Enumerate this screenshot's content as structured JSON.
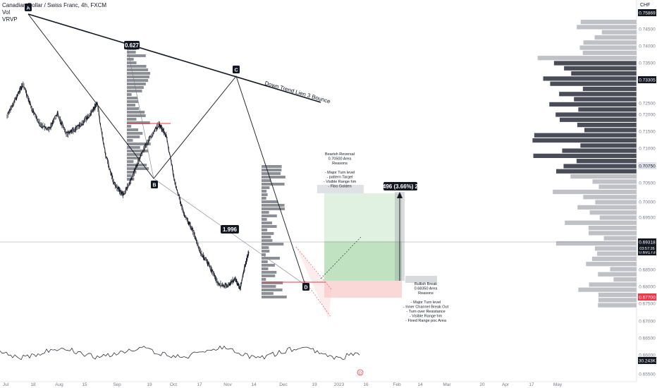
{
  "legend": {
    "title": "Canadian Dollar / Swiss Franc, 4h, FXCM",
    "line2": "Vol",
    "line3": "VRVP"
  },
  "axis_unit": "CHF",
  "colors": {
    "bull_zone": "#c8e6c9",
    "bear_zone": "#f8c8c8",
    "label_bg": "#131722",
    "price_red": "#f23645",
    "candle": "#131722",
    "volume_profile": "#b2b5be"
  },
  "chart_data": {
    "type": "line",
    "title": "Canadian Dollar / Swiss Franc, 4h, FXCM",
    "xlabel": "",
    "ylabel": "",
    "ylim": [
      0.65,
      0.76
    ],
    "y_ticks": [
      "0.75869",
      "0.74500",
      "0.74000",
      "0.73500",
      "0.73305",
      "0.72500",
      "0.72000",
      "0.71500",
      "0.71000",
      "0.70750",
      "0.70500",
      "0.70000",
      "0.69500",
      "0.69318",
      "0.69173",
      "0.68500",
      "0.68000",
      "0.67700",
      "0.67500",
      "0.67000",
      "0.66500",
      "0.66000",
      "30.243K",
      "0.65500"
    ],
    "x_ticks": [
      "Jul",
      "18",
      "Aug",
      "15",
      "Sep",
      "19",
      "Oct",
      "17",
      "Nov",
      "14",
      "Dec",
      "19",
      "2023",
      "16",
      "Feb",
      "14",
      "Mar",
      "20",
      "Apr",
      "17",
      "May"
    ],
    "price_series": [
      {
        "x": "Jul 1",
        "y": 0.745
      },
      {
        "x": "Jul 8",
        "y": 0.752
      },
      {
        "x": "Jul 14",
        "y": 0.7575
      },
      {
        "x": "Jul 21",
        "y": 0.748
      },
      {
        "x": "Jul 28",
        "y": 0.742
      },
      {
        "x": "Aug 4",
        "y": 0.74
      },
      {
        "x": "Aug 11",
        "y": 0.746
      },
      {
        "x": "Aug 18",
        "y": 0.738
      },
      {
        "x": "Aug 25",
        "y": 0.74
      },
      {
        "x": "Sep 1",
        "y": 0.743
      },
      {
        "x": "Sep 8",
        "y": 0.747
      },
      {
        "x": "Sep 12",
        "y": 0.75
      },
      {
        "x": "Sep 19",
        "y": 0.73
      },
      {
        "x": "Sep 26",
        "y": 0.719
      },
      {
        "x": "Oct 3",
        "y": 0.715
      },
      {
        "x": "Oct 10",
        "y": 0.721
      },
      {
        "x": "Oct 17",
        "y": 0.73
      },
      {
        "x": "Oct 24",
        "y": 0.736
      },
      {
        "x": "Nov 1",
        "y": 0.742
      },
      {
        "x": "Nov 7",
        "y": 0.738
      },
      {
        "x": "Nov 14",
        "y": 0.72
      },
      {
        "x": "Nov 21",
        "y": 0.708
      },
      {
        "x": "Nov 28",
        "y": 0.702
      },
      {
        "x": "Dec 5",
        "y": 0.693
      },
      {
        "x": "Dec 12",
        "y": 0.688
      },
      {
        "x": "Dec 19",
        "y": 0.681
      },
      {
        "x": "Dec 26",
        "y": 0.68
      },
      {
        "x": "Jan 2",
        "y": 0.683
      },
      {
        "x": "Jan 6",
        "y": 0.679
      },
      {
        "x": "Jan 10",
        "y": 0.688
      },
      {
        "x": "Jan 13",
        "y": 0.6932
      }
    ],
    "annotations": {
      "points": [
        "A",
        "B",
        "C",
        "D"
      ],
      "trendline_label": "Down Trend Lien 3 Bounce",
      "ratio_1": "0.627",
      "ratio_2": "1.996",
      "bearish_text": [
        "Bearish Reversal",
        "0.70500 Area",
        "Reasons",
        "",
        "- Major Turn level",
        "- pattern Target",
        "- Visible Range hm",
        "- Fibo Golden"
      ],
      "bullish_text": [
        "Bullish Break",
        "0.68350 Area",
        "Reasons",
        "",
        "- Major Turn level",
        "- Inner Channel Break Out",
        "- Turn over Resistance",
        "- Visible Range hm",
        "- Fixed Range poc Area"
      ],
      "position_label": "0.02496 (3.66%) 249.6",
      "price_labels": [
        "0.69318",
        "03:57:26",
        "0.69173",
        "0.68320",
        "0.67700",
        "0.70750",
        "0.73305",
        "0.75869",
        "30.243K"
      ],
      "event_marker": "D"
    }
  }
}
